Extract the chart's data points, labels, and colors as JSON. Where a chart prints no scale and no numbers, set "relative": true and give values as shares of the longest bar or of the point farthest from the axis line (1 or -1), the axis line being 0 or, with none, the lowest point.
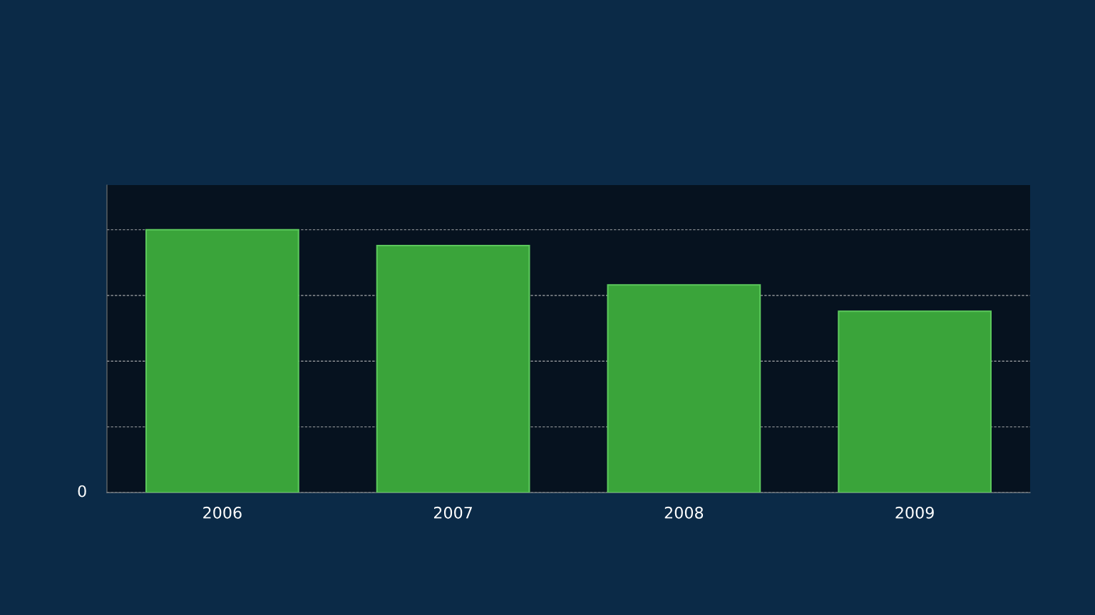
{
  "chart_data": {
    "type": "bar",
    "relative": true,
    "categories": [
      "2006",
      "2007",
      "2008",
      "2009"
    ],
    "values": [
      1,
      0.94,
      0.79,
      0.69
    ],
    "color": "#3aa43a",
    "annotations": [
      "0"
    ],
    "grid": "y"
  }
}
